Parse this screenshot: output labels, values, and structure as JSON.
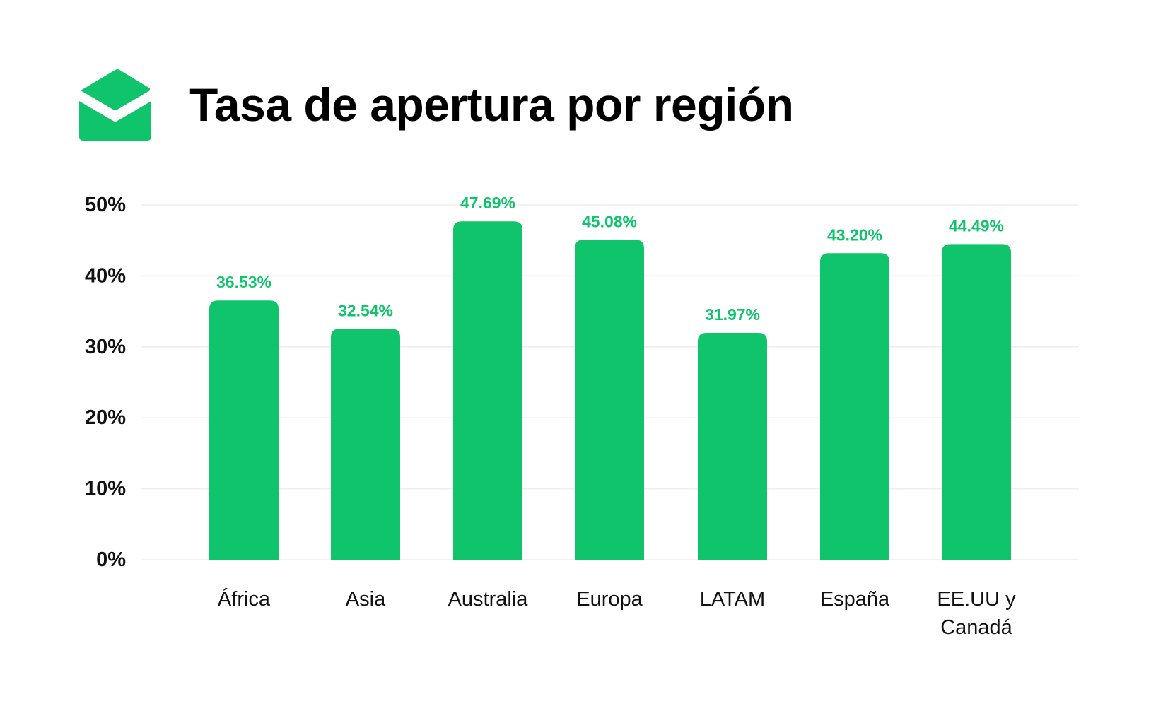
{
  "header": {
    "title": "Tasa de apertura por región",
    "icon": "open-envelope-icon"
  },
  "colors": {
    "bar": "#10C46C",
    "value_label": "#10C46C",
    "grid": "#EEEEEE",
    "text": "#111111"
  },
  "chart_data": {
    "type": "bar",
    "title": "Tasa de apertura por región",
    "categories": [
      "África",
      "Asia",
      "Australia",
      "Europa",
      "LATAM",
      "España",
      "EE.UU y Canadá"
    ],
    "values": [
      36.53,
      32.54,
      47.69,
      45.08,
      31.97,
      43.2,
      44.49
    ],
    "data_labels": [
      "36.53%",
      "32.54%",
      "47.69%",
      "45.08%",
      "31.97%",
      "43.20%",
      "44.49%"
    ],
    "ylim": [
      0,
      50
    ],
    "yticks": [
      0,
      10,
      20,
      30,
      40,
      50
    ],
    "ytick_labels": [
      "0%",
      "10%",
      "20%",
      "30%",
      "40%",
      "50%"
    ],
    "grid": true,
    "xlabel": "",
    "ylabel": ""
  }
}
